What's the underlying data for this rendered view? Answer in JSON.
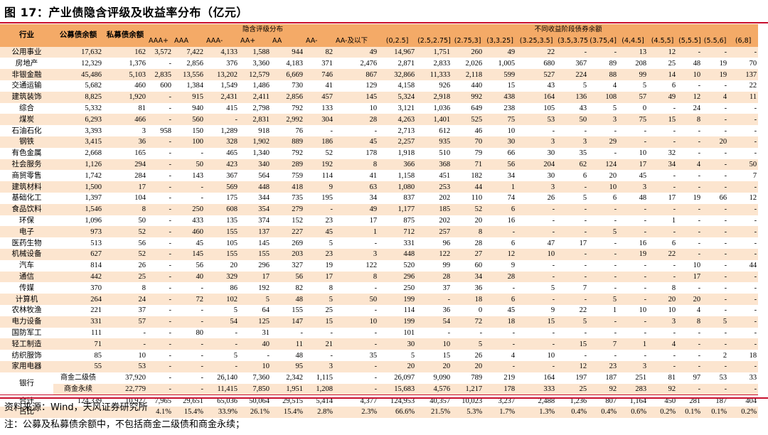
{
  "title": "图 17：产业债隐含评级及收益率分布（亿元）",
  "header": {
    "industry": "行业",
    "public_balance": "公募债余额",
    "private_balance": "私募债余额",
    "rating_group": "隐含评级分布",
    "yield_group": "不同收益阶段债券余额",
    "ratings": [
      "AAA+",
      "AAA",
      "AAA-",
      "AA+",
      "AA",
      "AA-",
      "AA-及以下"
    ],
    "yields": [
      "(0,2.5]",
      "(2.5,2.75]",
      "(2.75,3]",
      "(3,3.25]",
      "(3.25,3.5]",
      "(3.5,3.75]",
      "(3.75,4]",
      "(4,4.5]",
      "(4.5,5]",
      "(5,5.5]",
      "(5.5,6]",
      "(6,8]"
    ]
  },
  "rows": [
    {
      "industry": "公用事业",
      "v": [
        "17,632",
        "162",
        "3,572",
        "7,422",
        "4,133",
        "1,588",
        "944",
        "82",
        "49",
        "14,967",
        "1,751",
        "260",
        "49",
        "22",
        "-",
        "-",
        "13",
        "12",
        "-",
        "-",
        "-"
      ]
    },
    {
      "industry": "房地产",
      "v": [
        "12,329",
        "1,376",
        "-",
        "2,856",
        "376",
        "3,360",
        "4,183",
        "371",
        "2,476",
        "2,871",
        "2,833",
        "2,026",
        "1,005",
        "680",
        "367",
        "89",
        "208",
        "25",
        "48",
        "19",
        "70"
      ]
    },
    {
      "industry": "非银金融",
      "v": [
        "45,486",
        "5,103",
        "2,835",
        "13,556",
        "13,202",
        "12,579",
        "6,669",
        "746",
        "867",
        "32,866",
        "11,333",
        "2,118",
        "599",
        "527",
        "224",
        "88",
        "99",
        "14",
        "10",
        "19",
        "137"
      ]
    },
    {
      "industry": "交通运输",
      "v": [
        "5,682",
        "460",
        "600",
        "1,384",
        "1,549",
        "1,486",
        "730",
        "41",
        "129",
        "4,158",
        "926",
        "440",
        "15",
        "43",
        "5",
        "4",
        "5",
        "6",
        "-",
        "-",
        "22"
      ]
    },
    {
      "industry": "建筑装饰",
      "v": [
        "8,825",
        "1,920",
        "-",
        "915",
        "2,431",
        "2,411",
        "2,856",
        "457",
        "145",
        "5,324",
        "2,918",
        "992",
        "438",
        "164",
        "136",
        "108",
        "57",
        "49",
        "12",
        "4",
        "11"
      ]
    },
    {
      "industry": "综合",
      "v": [
        "5,332",
        "81",
        "-",
        "940",
        "415",
        "2,798",
        "792",
        "133",
        "10",
        "3,121",
        "1,036",
        "649",
        "238",
        "105",
        "43",
        "5",
        "0",
        "-",
        "24",
        "-",
        "-"
      ]
    },
    {
      "industry": "煤炭",
      "v": [
        "6,293",
        "466",
        "-",
        "560",
        "-",
        "2,831",
        "2,992",
        "304",
        "28",
        "4,263",
        "1,401",
        "525",
        "75",
        "53",
        "50",
        "3",
        "75",
        "15",
        "8",
        "-",
        "-"
      ]
    },
    {
      "industry": "石油石化",
      "v": [
        "3,393",
        "3",
        "958",
        "150",
        "1,289",
        "918",
        "76",
        "-",
        "-",
        "2,713",
        "612",
        "46",
        "10",
        "-",
        "-",
        "-",
        "-",
        "-",
        "-",
        "-",
        "-"
      ]
    },
    {
      "industry": "钢铁",
      "v": [
        "3,415",
        "36",
        "-",
        "100",
        "328",
        "1,902",
        "889",
        "186",
        "45",
        "2,257",
        "935",
        "70",
        "30",
        "3",
        "3",
        "29",
        "-",
        "-",
        "-",
        "20",
        "-"
      ]
    },
    {
      "industry": "有色金属",
      "v": [
        "2,668",
        "165",
        "-",
        "-",
        "465",
        "1,340",
        "792",
        "52",
        "178",
        "1,918",
        "510",
        "79",
        "66",
        "30",
        "35",
        "-",
        "10",
        "32",
        "-",
        "-",
        "-"
      ]
    },
    {
      "industry": "社会服务",
      "v": [
        "1,126",
        "294",
        "-",
        "50",
        "423",
        "340",
        "289",
        "192",
        "8",
        "366",
        "368",
        "71",
        "56",
        "204",
        "62",
        "124",
        "17",
        "34",
        "4",
        "-",
        "50"
      ]
    },
    {
      "industry": "商贸零售",
      "v": [
        "1,742",
        "284",
        "-",
        "143",
        "367",
        "564",
        "759",
        "114",
        "41",
        "1,158",
        "451",
        "182",
        "34",
        "30",
        "6",
        "20",
        "45",
        "-",
        "-",
        "-",
        "7"
      ]
    },
    {
      "industry": "建筑材料",
      "v": [
        "1,500",
        "17",
        "-",
        "-",
        "569",
        "448",
        "418",
        "9",
        "63",
        "1,080",
        "253",
        "44",
        "1",
        "3",
        "-",
        "10",
        "3",
        "-",
        "-",
        "-",
        "-"
      ]
    },
    {
      "industry": "基础化工",
      "v": [
        "1,397",
        "104",
        "-",
        "-",
        "175",
        "344",
        "735",
        "195",
        "34",
        "837",
        "202",
        "110",
        "74",
        "26",
        "5",
        "6",
        "48",
        "17",
        "19",
        "66",
        "12"
      ]
    },
    {
      "industry": "食品饮料",
      "v": [
        "1,546",
        "8",
        "-",
        "250",
        "608",
        "354",
        "279",
        "-",
        "49",
        "1,177",
        "185",
        "52",
        "6",
        "-",
        "-",
        "-",
        "-",
        "-",
        "-",
        "-",
        "-"
      ]
    },
    {
      "industry": "环保",
      "v": [
        "1,096",
        "50",
        "-",
        "433",
        "135",
        "374",
        "152",
        "23",
        "17",
        "875",
        "202",
        "20",
        "16",
        "-",
        "-",
        "-",
        "-",
        "1",
        "-",
        "-",
        "-"
      ]
    },
    {
      "industry": "电子",
      "v": [
        "973",
        "52",
        "-",
        "460",
        "155",
        "137",
        "227",
        "45",
        "1",
        "712",
        "257",
        "8",
        "-",
        "-",
        "-",
        "5",
        "-",
        "-",
        "-",
        "-",
        "-"
      ]
    },
    {
      "industry": "医药生物",
      "v": [
        "513",
        "56",
        "-",
        "45",
        "105",
        "145",
        "269",
        "5",
        "-",
        "331",
        "96",
        "28",
        "6",
        "47",
        "17",
        "-",
        "16",
        "6",
        "-",
        "-",
        "-"
      ]
    },
    {
      "industry": "机械设备",
      "v": [
        "627",
        "52",
        "-",
        "145",
        "155",
        "155",
        "203",
        "23",
        "3",
        "448",
        "122",
        "27",
        "12",
        "10",
        "-",
        "-",
        "19",
        "22",
        "-",
        "-",
        "-"
      ]
    },
    {
      "industry": "汽车",
      "v": [
        "814",
        "26",
        "-",
        "56",
        "20",
        "296",
        "327",
        "19",
        "122",
        "520",
        "99",
        "60",
        "9",
        "-",
        "-",
        "-",
        "-",
        "-",
        "10",
        "-",
        "44"
      ]
    },
    {
      "industry": "通信",
      "v": [
        "442",
        "25",
        "-",
        "40",
        "329",
        "17",
        "56",
        "17",
        "8",
        "296",
        "28",
        "34",
        "28",
        "-",
        "-",
        "-",
        "-",
        "-",
        "17",
        "-",
        "-"
      ]
    },
    {
      "industry": "传媒",
      "v": [
        "370",
        "8",
        "-",
        "-",
        "86",
        "192",
        "82",
        "8",
        "-",
        "250",
        "37",
        "36",
        "-",
        "5",
        "7",
        "-",
        "-",
        "8",
        "-",
        "-",
        "-"
      ]
    },
    {
      "industry": "计算机",
      "v": [
        "264",
        "24",
        "-",
        "72",
        "102",
        "5",
        "48",
        "5",
        "50",
        "199",
        "-",
        "18",
        "6",
        "-",
        "-",
        "5",
        "-",
        "20",
        "20",
        "-",
        "-"
      ]
    },
    {
      "industry": "农林牧渔",
      "v": [
        "221",
        "37",
        "-",
        "-",
        "5",
        "64",
        "155",
        "25",
        "-",
        "114",
        "36",
        "0",
        "45",
        "9",
        "22",
        "1",
        "10",
        "10",
        "4",
        "-",
        "-"
      ]
    },
    {
      "industry": "电力设备",
      "v": [
        "331",
        "57",
        "-",
        "-",
        "54",
        "125",
        "147",
        "15",
        "10",
        "199",
        "54",
        "72",
        "18",
        "15",
        "5",
        "-",
        "-",
        "3",
        "8",
        "5",
        "-"
      ]
    },
    {
      "industry": "国防军工",
      "v": [
        "111",
        "-",
        "-",
        "80",
        "-",
        "31",
        "-",
        "-",
        "-",
        "101",
        "-",
        "-",
        "-",
        "-",
        "-",
        "-",
        "-",
        "-",
        "-",
        "-",
        "-"
      ]
    },
    {
      "industry": "轻工制造",
      "v": [
        "71",
        "-",
        "-",
        "-",
        "-",
        "40",
        "11",
        "21",
        "-",
        "30",
        "10",
        "5",
        "-",
        "-",
        "15",
        "7",
        "1",
        "4",
        "-",
        "-",
        "-"
      ]
    },
    {
      "industry": "纺织服饰",
      "v": [
        "85",
        "10",
        "-",
        "-",
        "5",
        "-",
        "48",
        "-",
        "35",
        "5",
        "15",
        "26",
        "4",
        "10",
        "-",
        "-",
        "-",
        "-",
        "-",
        "2",
        "18"
      ]
    },
    {
      "industry": "家用电器",
      "v": [
        "55",
        "53",
        "-",
        "-",
        "-",
        "10",
        "95",
        "3",
        "-",
        "20",
        "20",
        "20",
        "-",
        "-",
        "12",
        "23",
        "3",
        "-",
        "-",
        "-",
        "-"
      ]
    }
  ],
  "bank": {
    "industry": "银行",
    "rows": [
      {
        "sub": "商金二级债",
        "v": [
          "37,920",
          "-",
          "-",
          "26,140",
          "7,360",
          "2,342",
          "1,115",
          "-",
          "26,097",
          "9,090",
          "789",
          "219",
          "164",
          "197",
          "187",
          "251",
          "81",
          "97",
          "53",
          "33"
        ]
      },
      {
        "sub": "商金永续",
        "v": [
          "22,779",
          "-",
          "-",
          "11,415",
          "7,850",
          "1,951",
          "1,208",
          "-",
          "15,683",
          "4,576",
          "1,217",
          "178",
          "333",
          "25",
          "92",
          "283",
          "92",
          "-",
          "-",
          "-"
        ]
      }
    ]
  },
  "total": {
    "label": "合计",
    "v": [
      "124,339",
      "10,927",
      "7,965",
      "29,651",
      "65,036",
      "50,064",
      "29,515",
      "5,414",
      "4,377",
      "124,953",
      "40,357",
      "10,023",
      "3,237",
      "2,488",
      "1,236",
      "807",
      "1,164",
      "450",
      "281",
      "187",
      "404"
    ]
  },
  "ratio": {
    "label": "占比",
    "v": [
      "",
      "",
      "4.1%",
      "15.4%",
      "33.9%",
      "26.1%",
      "15.4%",
      "2.8%",
      "2.3%",
      "66.6%",
      "21.5%",
      "5.3%",
      "1.7%",
      "1.3%",
      "0.4%",
      "0.4%",
      "0.6%",
      "0.2%",
      "0.1%",
      "0.1%",
      "0.2%"
    ]
  },
  "notes": {
    "source": "资料来源：Wind，天风证券研究所",
    "note": "注：公募及私募债余额中，不包括商金二级债和商金永续；"
  }
}
